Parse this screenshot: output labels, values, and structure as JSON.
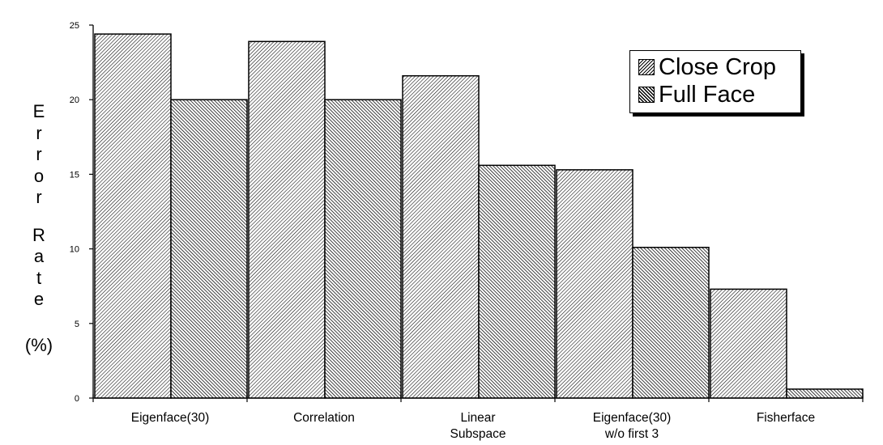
{
  "chart_data": {
    "type": "bar",
    "title": "",
    "xlabel": "",
    "ylabel": "Error Rate (%)",
    "ylabel_chars": [
      "E",
      "r",
      "r",
      "o",
      "r",
      "",
      "R",
      "a",
      "t",
      "e"
    ],
    "ylabel_unit": "(%)",
    "ylim": [
      0,
      25
    ],
    "yticks": [
      0,
      5,
      10,
      15,
      20,
      25
    ],
    "grid": false,
    "legend_position": "top-right",
    "categories": [
      [
        "Eigenface(30)"
      ],
      [
        "Correlation"
      ],
      [
        "Linear",
        "Subspace"
      ],
      [
        "Eigenface(30)",
        "w/o first 3"
      ],
      [
        "Fisherface"
      ]
    ],
    "series": [
      {
        "name": "Close Crop",
        "values": [
          24.4,
          23.9,
          21.6,
          15.3,
          7.3
        ]
      },
      {
        "name": "Full Face",
        "values": [
          20.0,
          20.0,
          15.6,
          10.1,
          0.6
        ]
      }
    ]
  }
}
